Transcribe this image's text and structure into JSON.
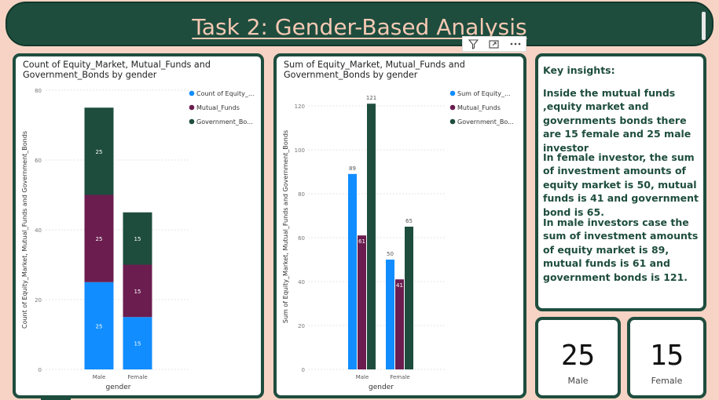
{
  "header": {
    "title": "Task 2: Gender-Based Analysis"
  },
  "colors": {
    "header_bg": "#1e4d3e",
    "title_text": "#f6c9b4",
    "page_bg": "#f6d3c4",
    "equity": "#118dff",
    "mutual": "#6b1d4f",
    "bonds": "#1e4d3e"
  },
  "toolbar": {
    "filter_icon": "filter-icon",
    "focus_icon": "focus-mode-icon",
    "more_icon": "more-options-icon"
  },
  "insights": {
    "title": "Key insights:",
    "p1": "Inside the mutual funds ,equity market and governments bonds there are 15 female and 25 male investor",
    "p2": "In female investor, the sum of investment amounts of equity market is 50, mutual funds is 41 and government bond is 65.",
    "p3": "In male investors case the sum of investment amounts of equity market is 89, mutual funds is 61 and government bonds is 121."
  },
  "kpis": [
    {
      "value": "25",
      "label": "Male"
    },
    {
      "value": "15",
      "label": "Female"
    }
  ],
  "chart_data": [
    {
      "type": "bar",
      "stacked": true,
      "title": "Count of Equity_Market, Mutual_Funds and Government_Bonds by gender",
      "xlabel": "gender",
      "ylabel": "Count of Equity_Market, Mutual_Funds and Government_Bonds",
      "categories": [
        "Male",
        "Female"
      ],
      "series": [
        {
          "name": "Count of Equity_...",
          "values": [
            25,
            15
          ]
        },
        {
          "name": "Mutual_Funds",
          "values": [
            25,
            15
          ]
        },
        {
          "name": "Government_Bo...",
          "values": [
            25,
            15
          ]
        }
      ],
      "ylim": [
        0,
        80
      ],
      "yticks": [
        0,
        20,
        40,
        60,
        80
      ],
      "legend": "top-right",
      "grid": true
    },
    {
      "type": "bar",
      "stacked": false,
      "title": "Sum of Equity_Market, Mutual_Funds and Government_Bonds by gender",
      "xlabel": "gender",
      "ylabel": "Sum of Equity_Market, Mutual_Funds and Government_Bonds",
      "categories": [
        "Male",
        "Female"
      ],
      "series": [
        {
          "name": "Sum of Equity_...",
          "values": [
            89,
            50
          ]
        },
        {
          "name": "Mutual_Funds",
          "values": [
            61,
            41
          ]
        },
        {
          "name": "Government_Bo...",
          "values": [
            121,
            65
          ]
        }
      ],
      "ylim": [
        0,
        130
      ],
      "yticks": [
        0,
        20,
        40,
        60,
        80,
        100,
        120
      ],
      "legend": "top-right",
      "grid": true
    }
  ]
}
